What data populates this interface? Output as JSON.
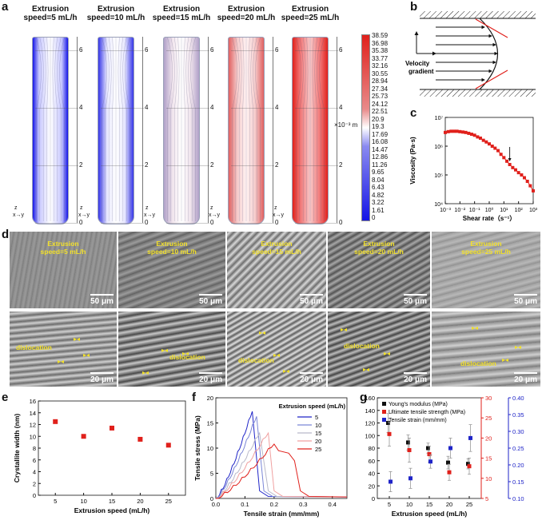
{
  "panels": {
    "a": "a",
    "b": "b",
    "c": "c",
    "d": "d",
    "e": "e",
    "f": "f",
    "g": "g"
  },
  "panel_a": {
    "titles": [
      "Extrusion speed=5 mL/h",
      "Extrusion speed=10 mL/h",
      "Extrusion speed=15 mL/h",
      "Extrusion speed=20 mL/h",
      "Extrusion speed=25 mL/h"
    ],
    "title_line1": "Extrusion",
    "title_line2": [
      "speed=5 mL/h",
      "speed=10 mL/h",
      "speed=15 mL/h",
      "speed=20 mL/h",
      "speed=25 mL/h"
    ],
    "z_ticks": [
      "6",
      "4",
      "2",
      "0"
    ],
    "axis_glyph_z": "z",
    "axis_glyph_xy": "x→y",
    "colorbar_values": [
      "38.59",
      "36.98",
      "35.38",
      "33.77",
      "32.16",
      "30.55",
      "28.94",
      "27.34",
      "25.73",
      "24.12",
      "22.51",
      "20.9",
      "19.3",
      "17.69",
      "16.08",
      "14.47",
      "12.86",
      "11.26",
      "9.65",
      "8.04",
      "6.43",
      "4.82",
      "3.22",
      "1.61",
      "0"
    ],
    "colorbar_unit": "×10⁻³ m"
  },
  "panel_b": {
    "velocity_label_1": "Velocity",
    "velocity_label_2": "gradient"
  },
  "panel_d": {
    "top_speeds": [
      "Extrusion speed=5 mL/h",
      "Extrusion speed=10 mL/h",
      "Extrusion speed=15 mL/h",
      "Extrusion speed=20 mL/h",
      "Extrusion speed=25 mL/h"
    ],
    "top_l1": "Extrusion",
    "top_l2": [
      "speed=5 mL/h",
      "speed=10 mL/h",
      "speed=15 mL/h",
      "speed=20 mL/h",
      "speed=25 mL/h"
    ],
    "top_scale": "50 μm",
    "bottom_scale": "20 μm",
    "dislocation": "dislocation"
  },
  "chart_data": [
    {
      "panel": "c",
      "type": "line",
      "xlabel": "Shear rate（s⁻¹）",
      "ylabel": "Viscosity (Pa·s)",
      "xscale": "log",
      "yscale": "log",
      "xlim": [
        0.001,
        1000
      ],
      "ylim": [
        10000,
        10000000
      ],
      "x_ticks": [
        "10⁻³",
        "10⁻²",
        "10⁻¹",
        "10⁰",
        "10¹",
        "10²",
        "10³"
      ],
      "y_ticks": [
        "10⁴",
        "10⁵",
        "10⁶",
        "10⁷"
      ],
      "x": [
        0.001,
        0.0016,
        0.0025,
        0.004,
        0.0063,
        0.01,
        0.016,
        0.025,
        0.04,
        0.063,
        0.1,
        0.16,
        0.25,
        0.4,
        0.63,
        1,
        1.6,
        2.5,
        4,
        6.3,
        10,
        16,
        25,
        40,
        63,
        100,
        160,
        250,
        400,
        630,
        1000
      ],
      "y": [
        3000000,
        3200000,
        3300000,
        3300000,
        3300000,
        3200000,
        3100000,
        3000000,
        2800000,
        2600000,
        2400000,
        2100000,
        1900000,
        1600000,
        1400000,
        1200000,
        1000000,
        850000,
        700000,
        520000,
        400000,
        300000,
        230000,
        180000,
        150000,
        120000,
        100000,
        80000,
        60000,
        42000,
        28000
      ],
      "color": "#e0201b",
      "annotation": "arrow at shear rate ≈ 25"
    },
    {
      "panel": "e",
      "type": "scatter",
      "xlabel": "Extrusion speed (mL/h)",
      "ylabel": "Crystallite width (nm)",
      "xlim": [
        2,
        28
      ],
      "ylim": [
        0,
        16
      ],
      "x_ticks": [
        "5",
        "10",
        "15",
        "20",
        "25"
      ],
      "y_ticks": [
        "0",
        "2",
        "4",
        "6",
        "8",
        "10",
        "12",
        "14",
        "16"
      ],
      "x": [
        5,
        10,
        15,
        20,
        25
      ],
      "y": [
        12.5,
        10.0,
        11.4,
        9.5,
        8.5
      ],
      "color": "#e0201b"
    },
    {
      "panel": "f",
      "type": "line",
      "xlabel": "Tensile strain (mm/mm)",
      "ylabel": "Tensile stress (MPa)",
      "xlim": [
        0.0,
        0.45
      ],
      "ylim": [
        0,
        20
      ],
      "x_ticks": [
        "0.0",
        "0.1",
        "0.2",
        "0.3",
        "0.4"
      ],
      "y_ticks": [
        "0",
        "5",
        "10",
        "15",
        "20"
      ],
      "legend_title": "Extrusion speed (mL/h)",
      "series": [
        {
          "name": "5",
          "color": "#1f24c8",
          "peak_strain": 0.125,
          "peak_stress": 17.5,
          "break_strain": 0.15
        },
        {
          "name": "10",
          "color": "#7a86d6",
          "peak_strain": 0.14,
          "peak_stress": 16.5,
          "break_strain": 0.165
        },
        {
          "name": "15",
          "color": "#b9b9c9",
          "peak_strain": 0.15,
          "peak_stress": 13.2,
          "break_strain": 0.18
        },
        {
          "name": "20",
          "color": "#f0a0a0",
          "peak_strain": 0.18,
          "peak_stress": 13.2,
          "break_strain": 0.2
        },
        {
          "name": "25",
          "color": "#e0201b",
          "peak_strain": 0.2,
          "peak_stress": 11.0,
          "break_strain": 0.29
        }
      ]
    },
    {
      "panel": "g",
      "type": "scatter",
      "xlabel": "Extrusion speed (mL/h)",
      "x_ticks": [
        "5",
        "10",
        "15",
        "20",
        "25"
      ],
      "x": [
        5,
        10,
        15,
        20,
        25
      ],
      "axes": {
        "left": {
          "ylim": [
            0,
            160
          ],
          "ticks": [
            "0",
            "20",
            "40",
            "60",
            "80",
            "100",
            "120",
            "140",
            "160"
          ],
          "color": "#111111"
        },
        "right1": {
          "ylim": [
            5,
            30
          ],
          "ticks": [
            "5",
            "10",
            "15",
            "20",
            "25",
            "30"
          ],
          "color": "#e0201b"
        },
        "right2": {
          "ylim": [
            0.1,
            0.4
          ],
          "ticks": [
            "0.10",
            "0.15",
            "0.20",
            "0.25",
            "0.30",
            "0.35",
            "0.40"
          ],
          "color": "#1f24c8"
        }
      },
      "series": [
        {
          "name": "Young's modulus (MPa)",
          "axis": "left",
          "color": "#111111",
          "values": [
            120,
            89,
            80,
            57,
            55
          ],
          "err": [
            15,
            12,
            8,
            10,
            8
          ]
        },
        {
          "name": "Ultimate tensile strength (MPa)",
          "axis": "right1",
          "color": "#e0201b",
          "values": [
            21,
            17,
            16,
            11.5,
            13
          ],
          "err": [
            3,
            3,
            2,
            2,
            2
          ]
        },
        {
          "name": "Tensile strain (mm/mm)",
          "axis": "right2",
          "color": "#1f24c8",
          "values": [
            0.15,
            0.16,
            0.21,
            0.25,
            0.28
          ],
          "err": [
            0.03,
            0.03,
            0.02,
            0.03,
            0.04
          ]
        }
      ]
    }
  ]
}
